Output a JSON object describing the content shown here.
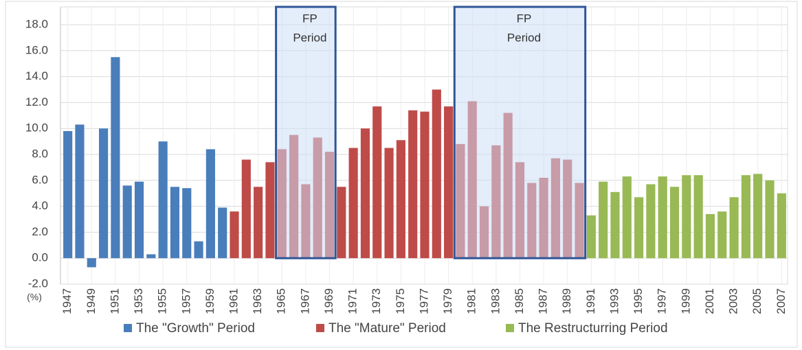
{
  "chart_data": {
    "type": "bar",
    "x": [
      1947,
      1948,
      1949,
      1950,
      1951,
      1952,
      1953,
      1954,
      1955,
      1956,
      1957,
      1958,
      1959,
      1960,
      1961,
      1962,
      1963,
      1964,
      1965,
      1966,
      1967,
      1968,
      1969,
      1970,
      1971,
      1972,
      1973,
      1974,
      1975,
      1976,
      1977,
      1978,
      1979,
      1980,
      1981,
      1982,
      1983,
      1984,
      1985,
      1986,
      1987,
      1988,
      1989,
      1990,
      1991,
      1992,
      1993,
      1994,
      1995,
      1996,
      1997,
      1998,
      1999,
      2000,
      2001,
      2002,
      2003,
      2004,
      2005,
      2006,
      2007
    ],
    "series": [
      {
        "name": "The \"Growth\" Period",
        "color": "#4a7ebb",
        "values": [
          9.8,
          10.3,
          -0.7,
          10.0,
          15.5,
          5.6,
          5.9,
          0.3,
          9.0,
          5.5,
          5.4,
          1.3,
          8.4,
          3.9,
          null,
          null,
          null,
          null,
          null,
          null,
          null,
          null,
          null,
          null,
          null,
          null,
          null,
          null,
          null,
          null,
          null,
          null,
          null,
          null,
          null,
          null,
          null,
          null,
          null,
          null,
          null,
          null,
          null,
          null,
          null,
          null,
          null,
          null,
          null,
          null,
          null,
          null,
          null,
          null,
          null,
          null,
          null,
          null,
          null,
          null,
          null
        ]
      },
      {
        "name": "The \"Mature\" Period",
        "color": "#be4b48",
        "values": [
          null,
          null,
          null,
          null,
          null,
          null,
          null,
          null,
          null,
          null,
          null,
          null,
          null,
          null,
          3.6,
          7.6,
          5.5,
          7.4,
          8.4,
          9.5,
          5.7,
          9.3,
          8.2,
          5.5,
          8.5,
          10.0,
          11.7,
          8.5,
          9.1,
          11.4,
          11.3,
          13.0,
          11.7,
          8.8,
          12.1,
          4.0,
          8.7,
          11.2,
          7.4,
          5.8,
          6.2,
          7.7,
          7.6,
          5.8,
          null,
          null,
          null,
          null,
          null,
          null,
          null,
          null,
          null,
          null,
          null,
          null,
          null,
          null,
          null,
          null,
          null
        ]
      },
      {
        "name": "The Restructurring Period",
        "color": "#98b954",
        "values": [
          null,
          null,
          null,
          null,
          null,
          null,
          null,
          null,
          null,
          null,
          null,
          null,
          null,
          null,
          null,
          null,
          null,
          null,
          null,
          null,
          null,
          null,
          null,
          null,
          null,
          null,
          null,
          null,
          null,
          null,
          null,
          null,
          null,
          null,
          null,
          null,
          null,
          null,
          null,
          null,
          null,
          null,
          null,
          null,
          3.3,
          5.9,
          5.1,
          6.3,
          4.7,
          5.7,
          6.3,
          5.5,
          6.4,
          6.4,
          3.4,
          3.6,
          4.7,
          6.4,
          6.5,
          6.0,
          5.0
        ]
      }
    ],
    "xlim": [
      1946.5,
      2007.5
    ],
    "xticks": [
      1947,
      1949,
      1951,
      1953,
      1955,
      1957,
      1959,
      1961,
      1963,
      1965,
      1967,
      1969,
      1971,
      1973,
      1975,
      1977,
      1979,
      1981,
      1983,
      1985,
      1987,
      1989,
      1991,
      1993,
      1995,
      1997,
      1999,
      2001,
      2003,
      2005,
      2007
    ],
    "ylim": [
      -2,
      18
    ],
    "yticks": [
      {
        "value": -2,
        "label": "-2.0"
      },
      {
        "value": 0,
        "label": "0.0"
      },
      {
        "value": 2,
        "label": "2.0"
      },
      {
        "value": 4,
        "label": "4.0"
      },
      {
        "value": 6,
        "label": "6.0"
      },
      {
        "value": 8,
        "label": "8.0"
      },
      {
        "value": 10,
        "label": "10.0"
      },
      {
        "value": 12,
        "label": "12.0"
      },
      {
        "value": 14,
        "label": "14.0"
      },
      {
        "value": 16,
        "label": "16.0"
      },
      {
        "value": 18,
        "label": "18.0"
      }
    ],
    "y_unit": "(%)",
    "grid": true,
    "legend": "bottom",
    "annotations": [
      {
        "lines": [
          "FP",
          "Period"
        ],
        "x": [
          1965,
          1969
        ]
      },
      {
        "lines": [
          "FP",
          "Period"
        ],
        "x": [
          1980,
          1990
        ]
      }
    ]
  }
}
